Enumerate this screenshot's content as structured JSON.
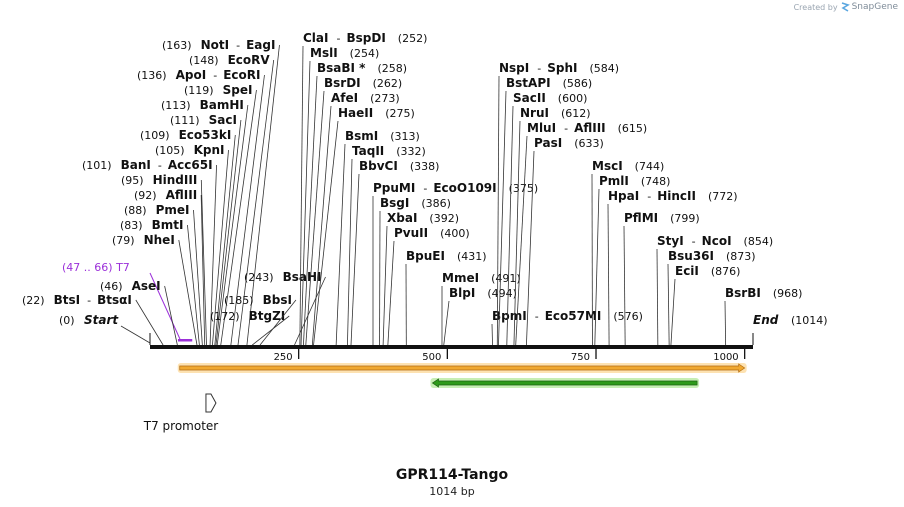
{
  "credit": {
    "prefix": "Created by",
    "brand": "SnapGene",
    "icon": "snapgene-logo-icon"
  },
  "map": {
    "name": "GPR114-Tango",
    "length_label": "1014 bp",
    "length": 1014,
    "start_label": "Start",
    "start_pos": "(0)",
    "end_label": "End",
    "end_pos": "(1014)",
    "ticks": [
      {
        "pos": 250,
        "label": "250"
      },
      {
        "pos": 500,
        "label": "500"
      },
      {
        "pos": 750,
        "label": "750"
      },
      {
        "pos": 1000,
        "label": "1000"
      }
    ]
  },
  "sites": [
    {
      "name": "BtsI",
      "partner": "BtsαI",
      "pos": "(22)",
      "at": 22
    },
    {
      "name": "AseI",
      "pos": "(46)",
      "at": 46
    },
    {
      "name": "NheI",
      "pos": "(79)",
      "at": 79
    },
    {
      "name": "BmtI",
      "pos": "(83)",
      "at": 83
    },
    {
      "name": "PmeI",
      "pos": "(88)",
      "at": 88
    },
    {
      "name": "AflIII",
      "pos": "(92)",
      "at": 92
    },
    {
      "name": "HindIII",
      "pos": "(95)",
      "at": 95
    },
    {
      "name": "BanI",
      "partner": "Acc65I",
      "pos": "(101)",
      "at": 101
    },
    {
      "name": "KpnI",
      "pos": "(105)",
      "at": 105
    },
    {
      "name": "Eco53kI",
      "pos": "(109)",
      "at": 109
    },
    {
      "name": "SacI",
      "pos": "(111)",
      "at": 111
    },
    {
      "name": "BamHI",
      "pos": "(113)",
      "at": 113
    },
    {
      "name": "SpeI",
      "pos": "(119)",
      "at": 119
    },
    {
      "name": "ApoI",
      "partner": "EcoRI",
      "pos": "(136)",
      "at": 136
    },
    {
      "name": "EcoRV",
      "pos": "(148)",
      "at": 148
    },
    {
      "name": "NotI",
      "partner": "EagI",
      "pos": "(163)",
      "at": 163
    },
    {
      "name": "BtgZI",
      "pos": "(172)",
      "at": 172
    },
    {
      "name": "BbsI",
      "pos": "(185)",
      "at": 185
    },
    {
      "name": "BsaHI",
      "pos": "(243)",
      "at": 243
    },
    {
      "name": "ClaI",
      "partner": "BspDI",
      "pos": "(252)",
      "at": 252
    },
    {
      "name": "MslI",
      "pos": "(254)",
      "at": 254
    },
    {
      "name": "BsaBI *",
      "pos": "(258)",
      "at": 258
    },
    {
      "name": "BsrDI",
      "pos": "(262)",
      "at": 262
    },
    {
      "name": "AfeI",
      "pos": "(273)",
      "at": 273
    },
    {
      "name": "HaeII",
      "pos": "(275)",
      "at": 275
    },
    {
      "name": "BsmI",
      "pos": "(313)",
      "at": 313
    },
    {
      "name": "TaqII",
      "pos": "(332)",
      "at": 332
    },
    {
      "name": "BbvCI",
      "pos": "(338)",
      "at": 338
    },
    {
      "name": "PpuMI",
      "partner": "EcoO109I",
      "pos": "(375)",
      "at": 375
    },
    {
      "name": "BsgI",
      "pos": "(386)",
      "at": 386
    },
    {
      "name": "XbaI",
      "pos": "(392)",
      "at": 392
    },
    {
      "name": "PvuII",
      "pos": "(400)",
      "at": 400
    },
    {
      "name": "BpuEI",
      "pos": "(431)",
      "at": 431
    },
    {
      "name": "MmeI",
      "pos": "(491)",
      "at": 491
    },
    {
      "name": "BlpI",
      "pos": "(494)",
      "at": 494
    },
    {
      "name": "BpmI",
      "partner": "Eco57MI",
      "pos": "(576)",
      "at": 576
    },
    {
      "name": "NspI",
      "partner": "SphI",
      "pos": "(584)",
      "at": 584
    },
    {
      "name": "BstAPI",
      "pos": "(586)",
      "at": 586
    },
    {
      "name": "SacII",
      "pos": "(600)",
      "at": 600
    },
    {
      "name": "NruI",
      "pos": "(612)",
      "at": 612
    },
    {
      "name": "MluI",
      "partner": "AflIII",
      "pos": "(615)",
      "at": 615
    },
    {
      "name": "PasI",
      "pos": "(633)",
      "at": 633
    },
    {
      "name": "MscI",
      "pos": "(744)",
      "at": 744
    },
    {
      "name": "PmlI",
      "pos": "(748)",
      "at": 748
    },
    {
      "name": "HpaI",
      "partner": "HincII",
      "pos": "(772)",
      "at": 772
    },
    {
      "name": "PflMI",
      "pos": "(799)",
      "at": 799
    },
    {
      "name": "StyI",
      "partner": "NcoI",
      "pos": "(854)",
      "at": 854
    },
    {
      "name": "Bsu36I",
      "pos": "(873)",
      "at": 873
    },
    {
      "name": "EciI",
      "pos": "(876)",
      "at": 876
    },
    {
      "name": "BsrBI",
      "pos": "(968)",
      "at": 968
    }
  ],
  "primer": {
    "name": "T7",
    "range": "(47 .. 66)",
    "start": 47,
    "end": 66,
    "color": "#9b30d9"
  },
  "features": [
    {
      "name": "orange-cds",
      "start": 50,
      "end": 1000,
      "direction": "forward",
      "fill": "#f0a830",
      "stroke": "#b06a10",
      "shadow": "#fde2b2"
    },
    {
      "name": "green-feature",
      "start": 475,
      "end": 920,
      "direction": "reverse",
      "fill": "#2e9a1a",
      "stroke": "#1a6010",
      "shadow": "#c7eeb4"
    }
  ],
  "promoter": {
    "label": "T7 promoter",
    "at": 47,
    "direction": "forward"
  }
}
